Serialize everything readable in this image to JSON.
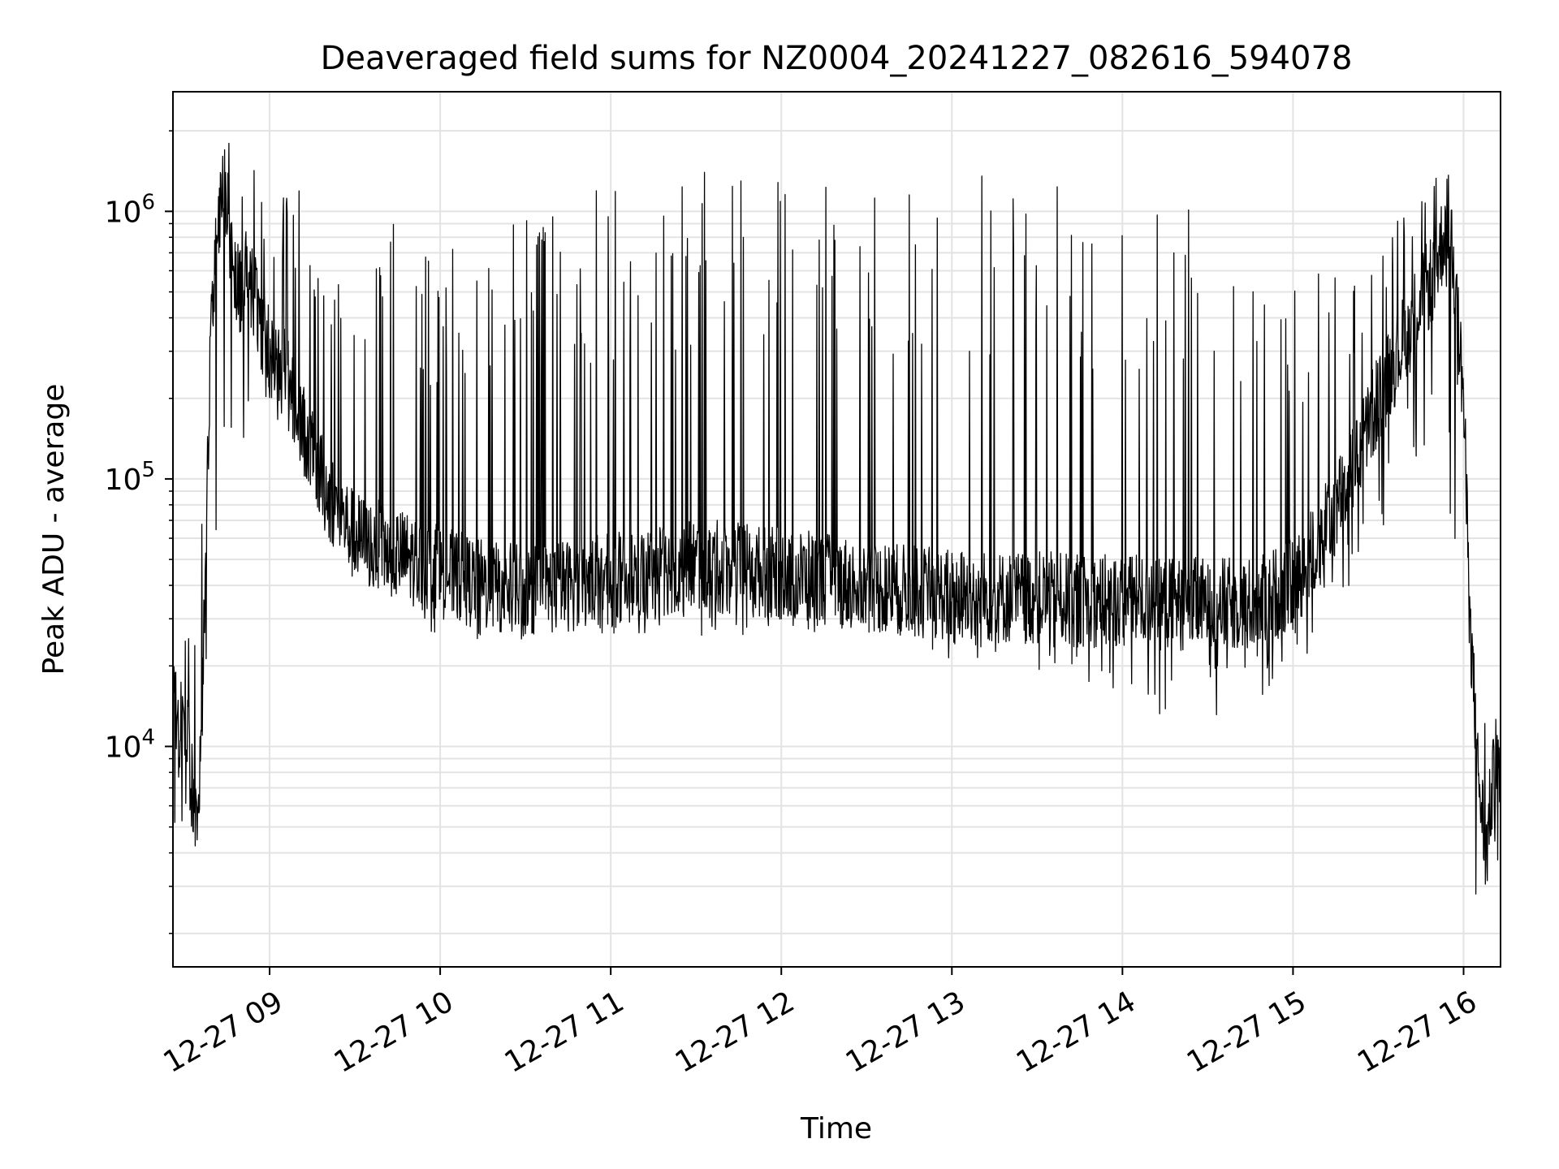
{
  "chart_data": {
    "type": "line",
    "title": "Deaveraged field sums for NZ0004_20241227_082616_594078",
    "xlabel": "Time",
    "ylabel": "Peak ADU - average",
    "yscale": "log",
    "ylim": [
      1500,
      2800000
    ],
    "xlim": [
      "2024-12-27 08:26",
      "2024-12-27 16:13"
    ],
    "x_ticks": [
      {
        "label": "12-27 09",
        "time": "2024-12-27 09:00"
      },
      {
        "label": "12-27 10",
        "time": "2024-12-27 10:00"
      },
      {
        "label": "12-27 11",
        "time": "2024-12-27 11:00"
      },
      {
        "label": "12-27 12",
        "time": "2024-12-27 12:00"
      },
      {
        "label": "12-27 13",
        "time": "2024-12-27 13:00"
      },
      {
        "label": "12-27 14",
        "time": "2024-12-27 14:00"
      },
      {
        "label": "12-27 15",
        "time": "2024-12-27 15:00"
      },
      {
        "label": "12-27 16",
        "time": "2024-12-27 16:00"
      }
    ],
    "y_ticks": [
      {
        "base": "10",
        "exp": "4",
        "value": 10000
      },
      {
        "base": "10",
        "exp": "5",
        "value": 100000
      },
      {
        "base": "10",
        "exp": "6",
        "value": 1000000
      }
    ],
    "grid": true,
    "line_color": "#000000",
    "series": [
      {
        "x": [
          "2024-12-27 08:26",
          "2024-12-27 08:28",
          "2024-12-27 08:30",
          "2024-12-27 08:32",
          "2024-12-27 08:34",
          "2024-12-27 08:36",
          "2024-12-27 08:37",
          "2024-12-27 08:38",
          "2024-12-27 08:40",
          "2024-12-27 08:42",
          "2024-12-27 08:44",
          "2024-12-27 08:46",
          "2024-12-27 08:48",
          "2024-12-27 08:50",
          "2024-12-27 08:52",
          "2024-12-27 08:55",
          "2024-12-27 08:58",
          "2024-12-27 09:00",
          "2024-12-27 09:05",
          "2024-12-27 09:10",
          "2024-12-27 09:15",
          "2024-12-27 09:20",
          "2024-12-27 09:30",
          "2024-12-27 09:40",
          "2024-12-27 09:50",
          "2024-12-27 10:00",
          "2024-12-27 10:15",
          "2024-12-27 10:30",
          "2024-12-27 10:45",
          "2024-12-27 11:00",
          "2024-12-27 11:15",
          "2024-12-27 11:30",
          "2024-12-27 11:45",
          "2024-12-27 12:00",
          "2024-12-27 12:15",
          "2024-12-27 12:30",
          "2024-12-27 12:45",
          "2024-12-27 13:00",
          "2024-12-27 13:15",
          "2024-12-27 13:30",
          "2024-12-27 13:45",
          "2024-12-27 14:00",
          "2024-12-27 14:15",
          "2024-12-27 14:30",
          "2024-12-27 14:45",
          "2024-12-27 15:00",
          "2024-12-27 15:10",
          "2024-12-27 15:20",
          "2024-12-27 15:30",
          "2024-12-27 15:40",
          "2024-12-27 15:50",
          "2024-12-27 15:55",
          "2024-12-27 16:00",
          "2024-12-27 16:02",
          "2024-12-27 16:05",
          "2024-12-27 16:08",
          "2024-12-27 16:10",
          "2024-12-27 16:12"
        ],
        "y": [
          18000,
          11000,
          14000,
          8000,
          5000,
          9000,
          30000,
          110000,
          500000,
          1000000,
          1200000,
          700000,
          600000,
          500000,
          650000,
          450000,
          350000,
          300000,
          250000,
          180000,
          120000,
          90000,
          60000,
          55000,
          50000,
          45000,
          40000,
          38000,
          40000,
          42000,
          45000,
          48000,
          46000,
          44000,
          42000,
          40000,
          38000,
          37000,
          36000,
          36000,
          35000,
          35000,
          34000,
          34000,
          34000,
          40000,
          60000,
          100000,
          200000,
          350000,
          600000,
          1000000,
          200000,
          35000,
          8000,
          4000,
          7000,
          8000
        ]
      }
    ],
    "spike_envelope": {
      "x": [
        "2024-12-27 08:30",
        "2024-12-27 08:45",
        "2024-12-27 09:00",
        "2024-12-27 09:30",
        "2024-12-27 10:00",
        "2024-12-27 11:00",
        "2024-12-27 12:00",
        "2024-12-27 12:45",
        "2024-12-27 13:00",
        "2024-12-27 13:30",
        "2024-12-27 14:00",
        "2024-12-27 14:30",
        "2024-12-27 15:00",
        "2024-12-27 15:30",
        "2024-12-27 15:50",
        "2024-12-27 16:05",
        "2024-12-27 16:12"
      ],
      "y_max": [
        25000,
        2000000,
        1300000,
        1100000,
        700000,
        1300000,
        1500000,
        1450000,
        1400000,
        1350000,
        1200000,
        1100000,
        600000,
        700000,
        1650000,
        15000,
        15000
      ],
      "y_min": [
        3000,
        90000,
        170000,
        45000,
        25000,
        25000,
        26000,
        27000,
        20000,
        18000,
        14000,
        12000,
        18000,
        60000,
        150000,
        2000,
        3500
      ]
    }
  }
}
